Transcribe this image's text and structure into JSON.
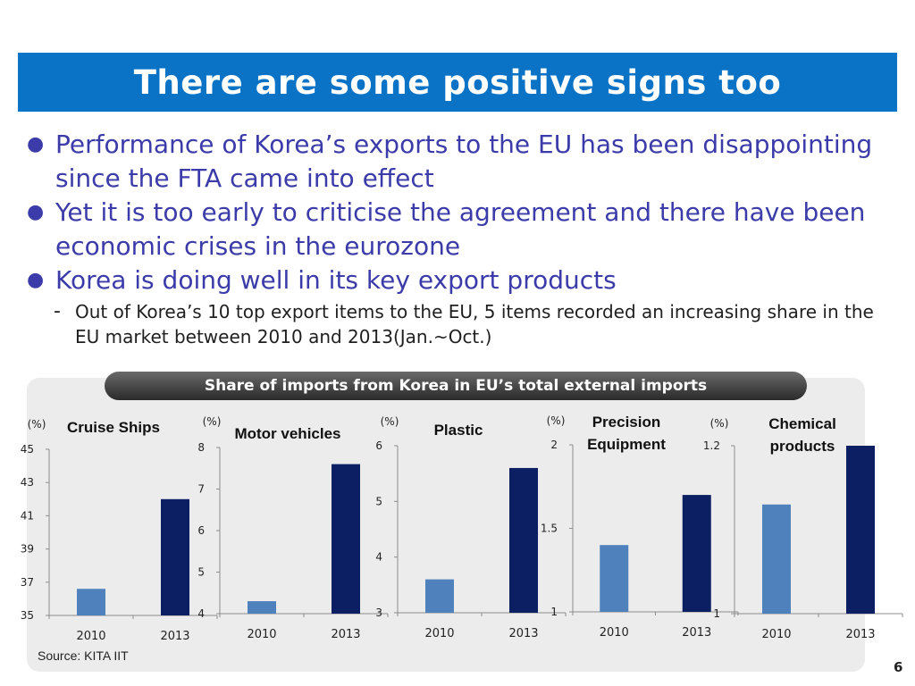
{
  "slide": {
    "title": "There are some positive signs too",
    "bullets": [
      "Performance of Korea’s exports to the EU has been disappointing since the FTA came into effect",
      "Yet it is too early to criticise the agreement and there have been economic crises in the eurozone",
      "Korea is doing well in its key export products"
    ],
    "sub_bullet": "Out of Korea’s 10 top export items to the EU, 5 items recorded an increasing share in the EU market between 2010 and 2013(Jan.~Oct.)",
    "bullet_glyph": "●",
    "dash_glyph": "-",
    "panel_title": "Share of imports from Korea in EU’s total external imports",
    "source": "Source: KITA IIT",
    "page_number": "6"
  },
  "colors": {
    "title_bar": "#0a73c6",
    "bullet_text": "#3b3baa",
    "bar_2010": "#4f81bd",
    "bar_2013": "#0d1f63",
    "panel_bg": "#ececec"
  },
  "chart_data": [
    {
      "type": "bar",
      "title": "Cruise Ships",
      "unit": "(%)",
      "categories": [
        "2010",
        "2013"
      ],
      "values": [
        36.6,
        42.0
      ],
      "ylim": [
        35,
        45
      ],
      "yticks": [
        "35",
        "37",
        "39",
        "41",
        "43",
        "45"
      ],
      "grid": false,
      "legend": "none"
    },
    {
      "type": "bar",
      "title": "Motor vehicles",
      "unit": "(%)",
      "categories": [
        "2010",
        "2013"
      ],
      "values": [
        4.3,
        7.6
      ],
      "ylim": [
        4,
        8
      ],
      "yticks": [
        "4",
        "5",
        "6",
        "7",
        "8"
      ],
      "grid": false,
      "legend": "none"
    },
    {
      "type": "bar",
      "title": "Plastic",
      "unit": "(%)",
      "categories": [
        "2010",
        "2013"
      ],
      "values": [
        3.6,
        5.6
      ],
      "ylim": [
        3,
        6
      ],
      "yticks": [
        "3",
        "4",
        "5",
        "6"
      ],
      "grid": false,
      "legend": "none"
    },
    {
      "type": "bar",
      "title": "Precision Equipment",
      "unit": "(%)",
      "categories": [
        "2010",
        "2013"
      ],
      "values": [
        1.4,
        1.7
      ],
      "ylim": [
        1,
        2
      ],
      "yticks": [
        "1",
        "1.5",
        "2"
      ],
      "grid": false,
      "legend": "none"
    },
    {
      "type": "bar",
      "title": "Chemical products",
      "unit": "(%)",
      "categories": [
        "2010",
        "2013"
      ],
      "values": [
        1.13,
        1.2
      ],
      "ylim": [
        1,
        1.2
      ],
      "yticks": [
        "1",
        "1.2"
      ],
      "grid": false,
      "legend": "none"
    }
  ]
}
